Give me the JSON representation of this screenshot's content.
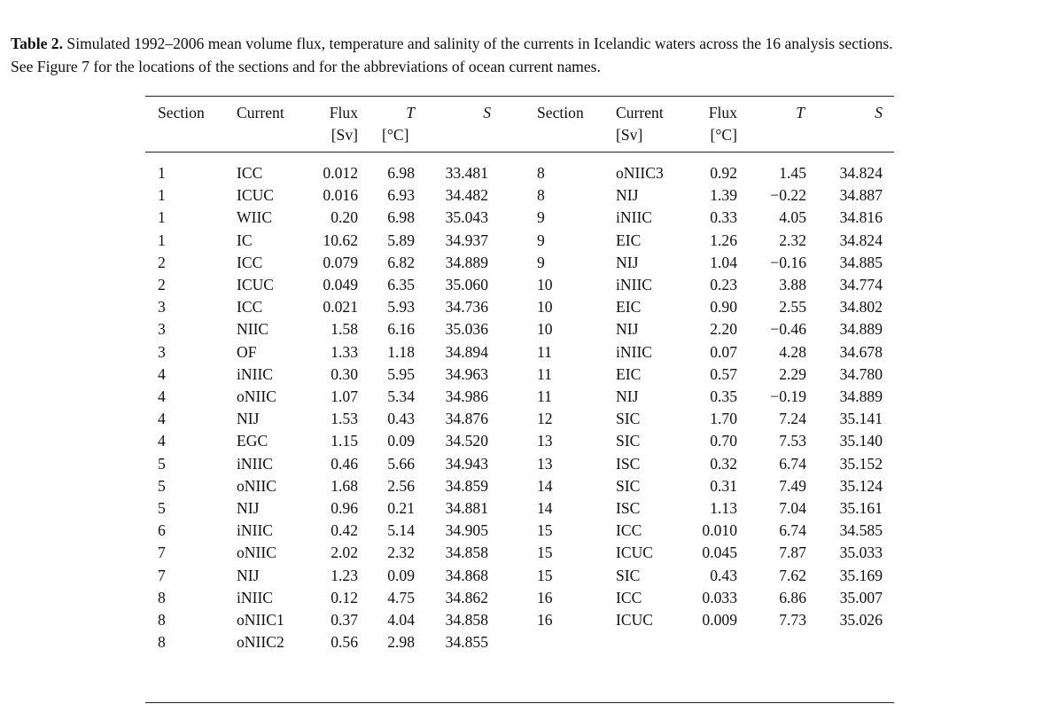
{
  "caption": {
    "label": "Table 2.",
    "line1": "Simulated 1992–2006 mean volume flux, temperature and salinity of the currents in Icelandic waters across the 16 analysis sections.",
    "line2": "See Figure 7 for the locations of the sections and for the abbreviations of ocean current names."
  },
  "headers": {
    "left": {
      "section": "Section",
      "current": "Current",
      "flux": "Flux",
      "flux_unit": "[Sv]",
      "t": "T",
      "t_unit": "[°C]",
      "s": "S"
    },
    "right": {
      "section": "Section",
      "current": "Current",
      "current_unit": "[Sv]",
      "flux": "Flux",
      "flux_unit": "[°C]",
      "t": "T",
      "s": "S"
    }
  },
  "left_rows": [
    [
      "1",
      "ICC",
      "0.012",
      "6.98",
      "33.481"
    ],
    [
      "1",
      "ICUC",
      "0.016",
      "6.93",
      "34.482"
    ],
    [
      "1",
      "WIIC",
      "0.20",
      "6.98",
      "35.043"
    ],
    [
      "1",
      "IC",
      "10.62",
      "5.89",
      "34.937"
    ],
    [
      "2",
      "ICC",
      "0.079",
      "6.82",
      "34.889"
    ],
    [
      "2",
      "ICUC",
      "0.049",
      "6.35",
      "35.060"
    ],
    [
      "3",
      "ICC",
      "0.021",
      "5.93",
      "34.736"
    ],
    [
      "3",
      "NIIC",
      "1.58",
      "6.16",
      "35.036"
    ],
    [
      "3",
      "OF",
      "1.33",
      "1.18",
      "34.894"
    ],
    [
      "4",
      "iNIIC",
      "0.30",
      "5.95",
      "34.963"
    ],
    [
      "4",
      "oNIIC",
      "1.07",
      "5.34",
      "34.986"
    ],
    [
      "4",
      "NIJ",
      "1.53",
      "0.43",
      "34.876"
    ],
    [
      "4",
      "EGC",
      "1.15",
      "0.09",
      "34.520"
    ],
    [
      "5",
      "iNIIC",
      "0.46",
      "5.66",
      "34.943"
    ],
    [
      "5",
      "oNIIC",
      "1.68",
      "2.56",
      "34.859"
    ],
    [
      "5",
      "NIJ",
      "0.96",
      "0.21",
      "34.881"
    ],
    [
      "6",
      "iNIIC",
      "0.42",
      "5.14",
      "34.905"
    ],
    [
      "7",
      "oNIIC",
      "2.02",
      "2.32",
      "34.858"
    ],
    [
      "7",
      "NIJ",
      "1.23",
      "0.09",
      "34.868"
    ],
    [
      "8",
      "iNIIC",
      "0.12",
      "4.75",
      "34.862"
    ],
    [
      "8",
      "oNIIC1",
      "0.37",
      "4.04",
      "34.858"
    ],
    [
      "8",
      "oNIIC2",
      "0.56",
      "2.98",
      "34.855"
    ]
  ],
  "right_rows": [
    [
      "8",
      "oNIIC3",
      "0.92",
      "1.45",
      "34.824"
    ],
    [
      "8",
      "NIJ",
      "1.39",
      "−0.22",
      "34.887"
    ],
    [
      "9",
      "iNIIC",
      "0.33",
      "4.05",
      "34.816"
    ],
    [
      "9",
      "EIC",
      "1.26",
      "2.32",
      "34.824"
    ],
    [
      "9",
      "NIJ",
      "1.04",
      "−0.16",
      "34.885"
    ],
    [
      "10",
      "iNIIC",
      "0.23",
      "3.88",
      "34.774"
    ],
    [
      "10",
      "EIC",
      "0.90",
      "2.55",
      "34.802"
    ],
    [
      "10",
      "NIJ",
      "2.20",
      "−0.46",
      "34.889"
    ],
    [
      "11",
      "iNIIC",
      "0.07",
      "4.28",
      "34.678"
    ],
    [
      "11",
      "EIC",
      "0.57",
      "2.29",
      "34.780"
    ],
    [
      "11",
      "NIJ",
      "0.35",
      "−0.19",
      "34.889"
    ],
    [
      "12",
      "SIC",
      "1.70",
      "7.24",
      "35.141"
    ],
    [
      "13",
      "SIC",
      "0.70",
      "7.53",
      "35.140"
    ],
    [
      "13",
      "ISC",
      "0.32",
      "6.74",
      "35.152"
    ],
    [
      "14",
      "SIC",
      "0.31",
      "7.49",
      "35.124"
    ],
    [
      "14",
      "ISC",
      "1.13",
      "7.04",
      "35.161"
    ],
    [
      "15",
      "ICC",
      "0.010",
      "6.74",
      "34.585"
    ],
    [
      "15",
      "ICUC",
      "0.045",
      "7.87",
      "35.033"
    ],
    [
      "15",
      "SIC",
      "0.43",
      "7.62",
      "35.169"
    ],
    [
      "16",
      "ICC",
      "0.033",
      "6.86",
      "35.007"
    ],
    [
      "16",
      "ICUC",
      "0.009",
      "7.73",
      "35.026"
    ]
  ]
}
